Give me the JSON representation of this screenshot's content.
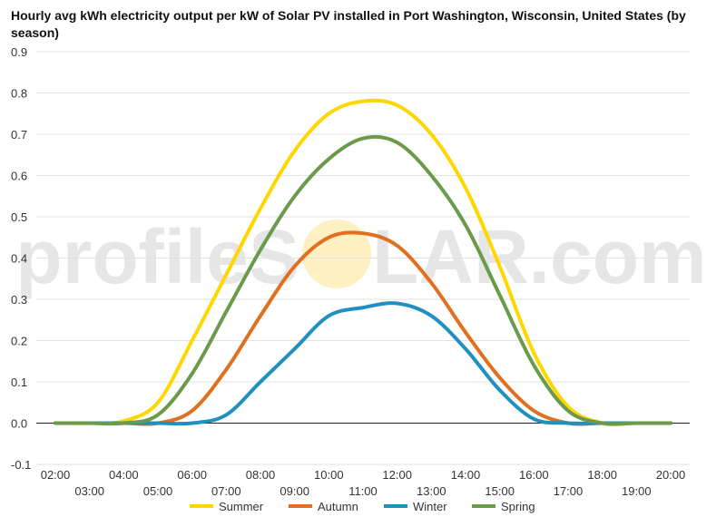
{
  "chart_data": {
    "type": "line",
    "title": "Hourly avg kWh electricity output per kW of Solar PV installed in Port Washington, Wisconsin, United States (by season)",
    "xlabel": "",
    "ylabel": "",
    "ylim": [
      -0.1,
      0.9
    ],
    "yticks": [
      "-0.1",
      "0.0",
      "0.1",
      "0.2",
      "0.3",
      "0.4",
      "0.5",
      "0.6",
      "0.7",
      "0.8",
      "0.9"
    ],
    "x_ticks_top": [
      "02:00",
      "04:00",
      "06:00",
      "08:00",
      "10:00",
      "12:00",
      "14:00",
      "16:00",
      "18:00",
      "20:00"
    ],
    "x_ticks_bottom": [
      "03:00",
      "05:00",
      "07:00",
      "09:00",
      "11:00",
      "13:00",
      "15:00",
      "17:00",
      "19:00"
    ],
    "x": [
      "02:00",
      "03:00",
      "04:00",
      "05:00",
      "06:00",
      "07:00",
      "08:00",
      "09:00",
      "10:00",
      "11:00",
      "12:00",
      "13:00",
      "14:00",
      "15:00",
      "16:00",
      "17:00",
      "18:00",
      "19:00",
      "20:00"
    ],
    "grid": true,
    "legend_position": "bottom",
    "series": [
      {
        "name": "Summer",
        "color": "#FFD700",
        "values": [
          0,
          0,
          0.005,
          0.05,
          0.2,
          0.36,
          0.52,
          0.66,
          0.75,
          0.78,
          0.77,
          0.7,
          0.57,
          0.38,
          0.17,
          0.04,
          0,
          0,
          0
        ]
      },
      {
        "name": "Autumn",
        "color": "#E07020",
        "values": [
          0,
          0,
          0,
          0,
          0.03,
          0.13,
          0.26,
          0.38,
          0.45,
          0.46,
          0.43,
          0.34,
          0.22,
          0.11,
          0.03,
          0,
          0,
          0,
          0
        ]
      },
      {
        "name": "Winter",
        "color": "#2090C0",
        "values": [
          0,
          0,
          0,
          0,
          0,
          0.02,
          0.1,
          0.18,
          0.26,
          0.28,
          0.29,
          0.26,
          0.18,
          0.08,
          0.01,
          0,
          0,
          0,
          0
        ]
      },
      {
        "name": "Spring",
        "color": "#6A9A4A",
        "values": [
          0,
          0,
          0,
          0.02,
          0.12,
          0.27,
          0.42,
          0.55,
          0.64,
          0.69,
          0.68,
          0.6,
          0.48,
          0.31,
          0.14,
          0.03,
          0,
          0,
          0
        ]
      }
    ]
  },
  "watermark": {
    "left": "profileS",
    "right": "LAR.com",
    "sun_color": "#FFE69A"
  }
}
